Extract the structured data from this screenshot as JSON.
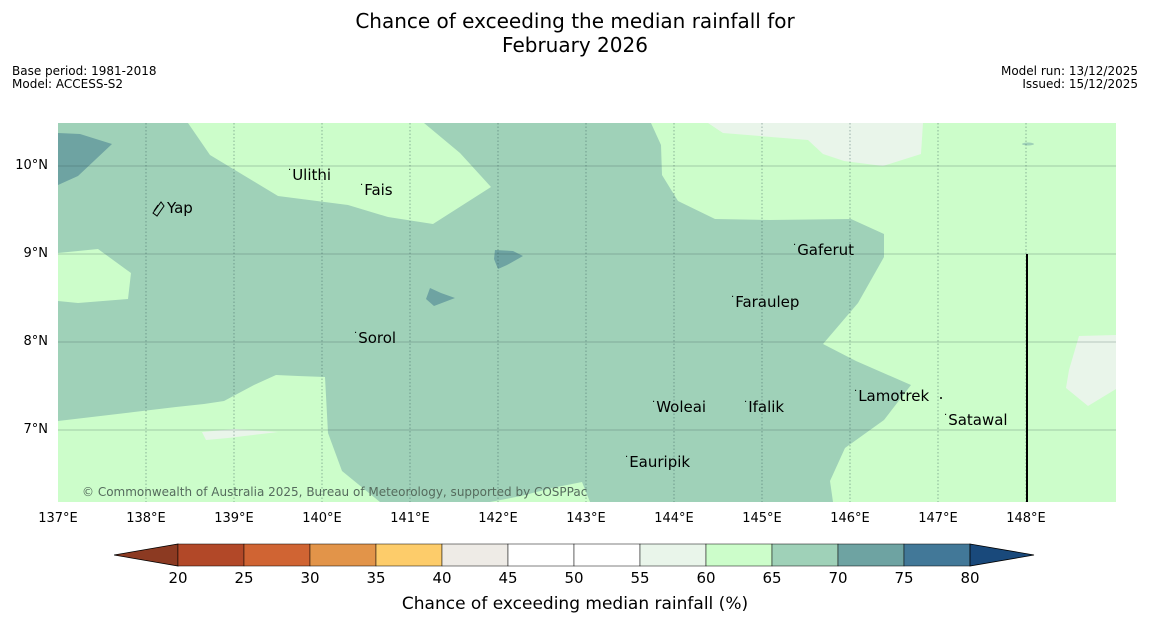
{
  "title": {
    "line1": "Chance of exceeding the median rainfall for",
    "line2": "February 2026"
  },
  "meta": {
    "base_period": "Base period: 1981-2018",
    "model": "Model: ACCESS-S2",
    "model_run": "Model run: 13/12/2025",
    "issued": "Issued: 15/12/2025"
  },
  "map": {
    "copyright": "© Commonwealth of Australia 2025, Bureau of Meteorology, supported by COSPPac",
    "lat_labels": [
      "10°N",
      "9°N",
      "8°N",
      "7°N"
    ],
    "lon_labels": [
      "137°E",
      "138°E",
      "139°E",
      "140°E",
      "141°E",
      "142°E",
      "143°E",
      "144°E",
      "145°E",
      "146°E",
      "147°E",
      "148°E"
    ],
    "places": {
      "ulithi": "Ulithi",
      "fais": "Fais",
      "yap": "Yap",
      "gaferut": "Gaferut",
      "faraulep": "Faraulep",
      "sorol": "Sorol",
      "lamotrek": "Lamotrek",
      "woleai": "Woleai",
      "ifalik": "Ifalik",
      "satawal": "Satawal",
      "eauripik": "Eauripik"
    }
  },
  "colorbar": {
    "label": "Chance of exceeding median rainfall (%)",
    "ticks": [
      "20",
      "25",
      "30",
      "35",
      "40",
      "45",
      "50",
      "55",
      "60",
      "65",
      "70",
      "75",
      "80"
    ],
    "colors": {
      "under": "#8c3a22",
      "bins": [
        "#b24828",
        "#d06433",
        "#e29449",
        "#fdcc6a",
        "#eeebe6",
        "#ffffff",
        "#ffffff",
        "#e9f5ea",
        "#ccfdca",
        "#9fd1b8",
        "#6ea3a2",
        "#427898"
      ],
      "over": "#19497b"
    }
  }
}
